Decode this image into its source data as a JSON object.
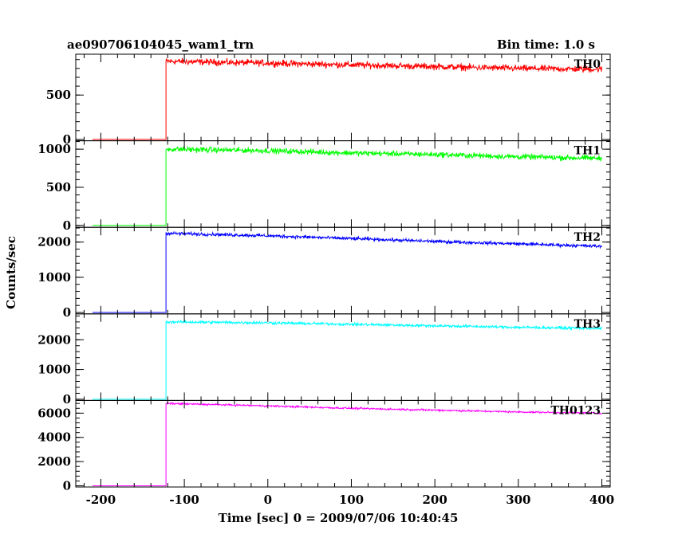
{
  "header": {
    "title": "ae090706104045_wam1_trn",
    "bin_time": "Bin time: 1.0 s"
  },
  "chart_data": {
    "type": "line",
    "title": "ae090706104045_wam1_trn",
    "subtitle": "Bin time: 1.0 s",
    "xlabel": "Time [sec] 0 = 2009/07/06 10:40:45",
    "ylabel": "Counts/sec",
    "xlim": [
      -230,
      410
    ],
    "x_ticks": [
      -200,
      -100,
      0,
      100,
      200,
      300,
      400
    ],
    "grid": false,
    "onset_time": -122,
    "series": [
      {
        "name": "TH0",
        "color": "#ff0000",
        "ylim": [
          -15,
          960
        ],
        "y_ticks": [
          0,
          500
        ],
        "pre_level": 0,
        "x": [
          -120,
          0,
          100,
          200,
          300,
          400
        ],
        "values": [
          880,
          860,
          840,
          820,
          800,
          790
        ],
        "noise": 40
      },
      {
        "name": "TH1",
        "color": "#00ff00",
        "ylim": [
          -25,
          1110
        ],
        "y_ticks": [
          0,
          500,
          1000
        ],
        "pre_level": 0,
        "x": [
          -120,
          0,
          100,
          200,
          300,
          400
        ],
        "values": [
          1000,
          980,
          950,
          930,
          900,
          880
        ],
        "noise": 40
      },
      {
        "name": "TH2",
        "color": "#0000ff",
        "ylim": [
          -40,
          2420
        ],
        "y_ticks": [
          0,
          1000,
          2000
        ],
        "pre_level": 0,
        "x": [
          -120,
          0,
          100,
          200,
          300,
          400
        ],
        "values": [
          2250,
          2180,
          2100,
          2020,
          1950,
          1880
        ],
        "noise": 50
      },
      {
        "name": "TH3",
        "color": "#00ffff",
        "ylim": [
          -40,
          2870
        ],
        "y_ticks": [
          0,
          1000,
          2000
        ],
        "pre_level": 0,
        "x": [
          -120,
          0,
          100,
          200,
          300,
          400
        ],
        "values": [
          2600,
          2570,
          2520,
          2470,
          2420,
          2380
        ],
        "noise": 50
      },
      {
        "name": "TH0123",
        "color": "#ff00ff",
        "ylim": [
          -100,
          7050
        ],
        "y_ticks": [
          0,
          2000,
          4000,
          6000
        ],
        "pre_level": 0,
        "x": [
          -120,
          0,
          100,
          200,
          300,
          400
        ],
        "values": [
          6800,
          6600,
          6400,
          6250,
          6100,
          6000
        ],
        "noise": 80
      }
    ]
  }
}
